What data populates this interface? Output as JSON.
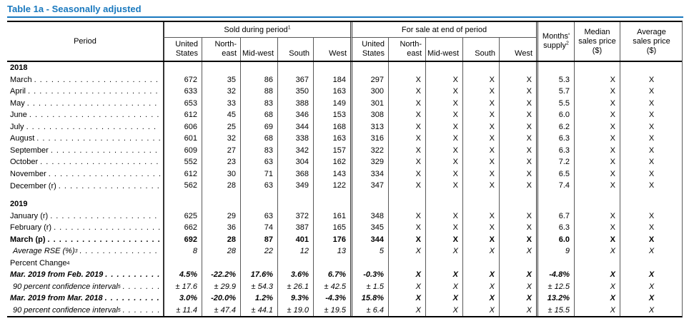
{
  "title": "Table 1a - Seasonally adjusted",
  "header": {
    "period": "Period",
    "sold_group": {
      "label": "Sold during period",
      "sup": "1"
    },
    "forsale_group": {
      "label": "For sale at end of period",
      "sup": ""
    },
    "regions": [
      "United States",
      "North-east",
      "Mid-west",
      "South",
      "West"
    ],
    "months_supply": {
      "label": "Months' supply",
      "sup": "2"
    },
    "median_label": "Median sales price ($)",
    "average_label": "Average sales price ($)"
  },
  "accent_color": "#1878be",
  "table": {
    "rows": [
      {
        "type": "section",
        "style": "section",
        "label": "2018",
        "sup": "",
        "indent": false,
        "dots": false,
        "values": []
      },
      {
        "type": "data",
        "style": "normal",
        "label": "March",
        "sup": "",
        "indent": false,
        "dots": true,
        "values": [
          "672",
          "35",
          "86",
          "367",
          "184",
          "297",
          "X",
          "X",
          "X",
          "X",
          "5.3",
          "X",
          "X"
        ]
      },
      {
        "type": "data",
        "style": "normal",
        "label": "April",
        "sup": "",
        "indent": false,
        "dots": true,
        "values": [
          "633",
          "32",
          "88",
          "350",
          "163",
          "300",
          "X",
          "X",
          "X",
          "X",
          "5.7",
          "X",
          "X"
        ]
      },
      {
        "type": "data",
        "style": "normal",
        "label": "May",
        "sup": "",
        "indent": false,
        "dots": true,
        "values": [
          "653",
          "33",
          "83",
          "388",
          "149",
          "301",
          "X",
          "X",
          "X",
          "X",
          "5.5",
          "X",
          "X"
        ]
      },
      {
        "type": "data",
        "style": "normal",
        "label": "June",
        "sup": "",
        "indent": false,
        "dots": true,
        "values": [
          "612",
          "45",
          "68",
          "346",
          "153",
          "308",
          "X",
          "X",
          "X",
          "X",
          "6.0",
          "X",
          "X"
        ]
      },
      {
        "type": "data",
        "style": "normal",
        "label": "July",
        "sup": "",
        "indent": false,
        "dots": true,
        "values": [
          "606",
          "25",
          "69",
          "344",
          "168",
          "313",
          "X",
          "X",
          "X",
          "X",
          "6.2",
          "X",
          "X"
        ]
      },
      {
        "type": "data",
        "style": "normal",
        "label": "August",
        "sup": "",
        "indent": false,
        "dots": true,
        "values": [
          "601",
          "32",
          "68",
          "338",
          "163",
          "316",
          "X",
          "X",
          "X",
          "X",
          "6.3",
          "X",
          "X"
        ]
      },
      {
        "type": "data",
        "style": "normal",
        "label": "September",
        "sup": "",
        "indent": false,
        "dots": true,
        "values": [
          "609",
          "27",
          "83",
          "342",
          "157",
          "322",
          "X",
          "X",
          "X",
          "X",
          "6.3",
          "X",
          "X"
        ]
      },
      {
        "type": "data",
        "style": "normal",
        "label": "October",
        "sup": "",
        "indent": false,
        "dots": true,
        "values": [
          "552",
          "23",
          "63",
          "304",
          "162",
          "329",
          "X",
          "X",
          "X",
          "X",
          "7.2",
          "X",
          "X"
        ]
      },
      {
        "type": "data",
        "style": "normal",
        "label": "November",
        "sup": "",
        "indent": false,
        "dots": true,
        "values": [
          "612",
          "30",
          "71",
          "368",
          "143",
          "334",
          "X",
          "X",
          "X",
          "X",
          "6.5",
          "X",
          "X"
        ]
      },
      {
        "type": "data",
        "style": "normal",
        "label": "December (r)",
        "sup": "",
        "indent": false,
        "dots": true,
        "values": [
          "562",
          "28",
          "63",
          "349",
          "122",
          "347",
          "X",
          "X",
          "X",
          "X",
          "7.4",
          "X",
          "X"
        ]
      },
      {
        "type": "blank",
        "style": "",
        "label": "",
        "sup": "",
        "indent": false,
        "dots": false,
        "values": []
      },
      {
        "type": "section",
        "style": "section",
        "label": "2019",
        "sup": "",
        "indent": false,
        "dots": false,
        "values": []
      },
      {
        "type": "data",
        "style": "normal",
        "label": "January (r)",
        "sup": "",
        "indent": false,
        "dots": true,
        "values": [
          "625",
          "29",
          "63",
          "372",
          "161",
          "348",
          "X",
          "X",
          "X",
          "X",
          "6.7",
          "X",
          "X"
        ]
      },
      {
        "type": "data",
        "style": "normal",
        "label": "February (r)",
        "sup": "",
        "indent": false,
        "dots": true,
        "values": [
          "662",
          "36",
          "74",
          "387",
          "165",
          "345",
          "X",
          "X",
          "X",
          "X",
          "6.3",
          "X",
          "X"
        ]
      },
      {
        "type": "data",
        "style": "bold",
        "label": "March (p)",
        "sup": "",
        "indent": false,
        "dots": true,
        "values": [
          "692",
          "28",
          "87",
          "401",
          "176",
          "344",
          "X",
          "X",
          "X",
          "X",
          "6.0",
          "X",
          "X"
        ]
      },
      {
        "type": "data",
        "style": "italic",
        "label": "Average RSE (%)",
        "sup": "3",
        "indent": true,
        "dots": true,
        "values": [
          "8",
          "28",
          "22",
          "12",
          "13",
          "5",
          "X",
          "X",
          "X",
          "X",
          "9",
          "X",
          "X"
        ]
      },
      {
        "type": "data",
        "style": "normal",
        "label": "Percent Change",
        "sup": "4",
        "indent": false,
        "dots": false,
        "values": []
      },
      {
        "type": "data",
        "style": "bolditalic",
        "label": "Mar. 2019 from Feb. 2019",
        "sup": "",
        "indent": false,
        "dots": true,
        "values": [
          "4.5%",
          "-22.2%",
          "17.6%",
          "3.6%",
          "6.7%",
          "-0.3%",
          "X",
          "X",
          "X",
          "X",
          "-4.8%",
          "X",
          "X"
        ]
      },
      {
        "type": "data",
        "style": "italic",
        "label": "90 percent confidence interval",
        "sup": "5",
        "indent": true,
        "dots": true,
        "values": [
          "± 17.6",
          "± 29.9",
          "± 54.3",
          "± 26.1",
          "± 42.5",
          "± 1.5",
          "X",
          "X",
          "X",
          "X",
          "± 12.5",
          "X",
          "X"
        ]
      },
      {
        "type": "data",
        "style": "bolditalic",
        "label": "Mar. 2019 from Mar. 2018",
        "sup": "",
        "indent": false,
        "dots": true,
        "values": [
          "3.0%",
          "-20.0%",
          "1.2%",
          "9.3%",
          "-4.3%",
          "15.8%",
          "X",
          "X",
          "X",
          "X",
          "13.2%",
          "X",
          "X"
        ]
      },
      {
        "type": "data",
        "style": "italic",
        "label": "90 percent confidence interval",
        "sup": "5",
        "indent": true,
        "dots": true,
        "values": [
          "± 11.4",
          "± 47.4",
          "± 44.1",
          "± 19.0",
          "± 19.5",
          "± 6.4",
          "X",
          "X",
          "X",
          "X",
          "± 15.5",
          "X",
          "X"
        ]
      }
    ]
  }
}
